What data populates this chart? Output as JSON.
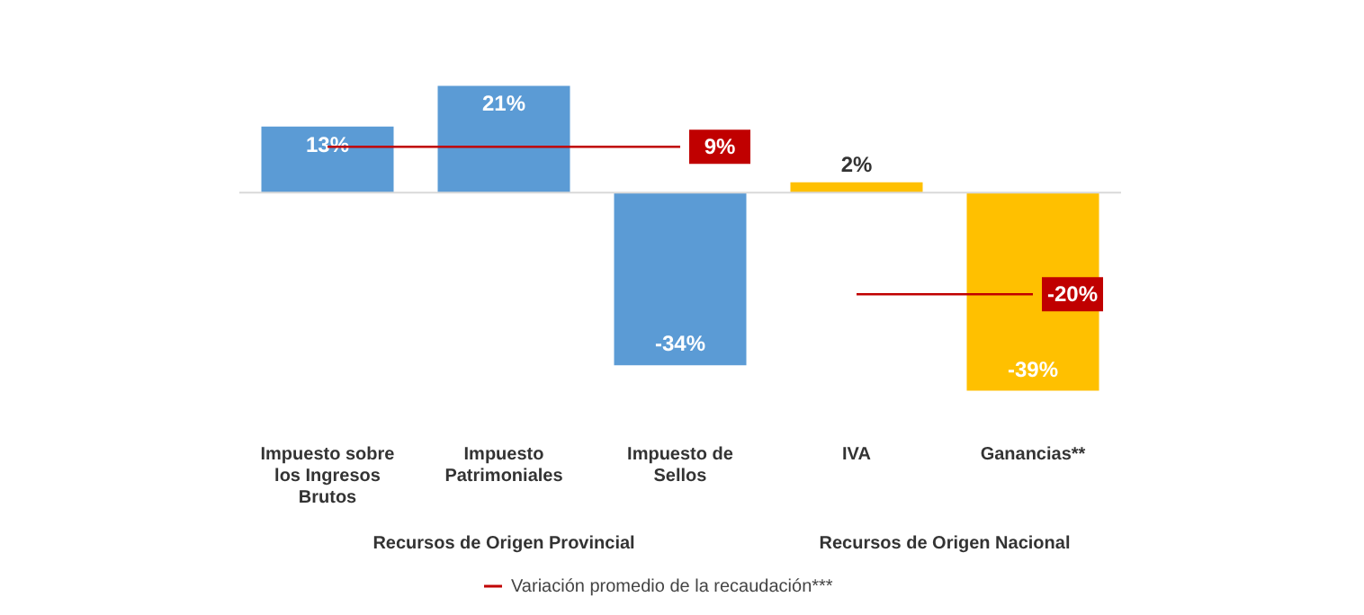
{
  "chart_data": {
    "type": "bar",
    "categories": [
      "Impuesto sobre los Ingresos Brutos",
      "Impuesto Patrimoniales",
      "Impuesto de Sellos",
      "IVA",
      "Ganancias**"
    ],
    "values": [
      13,
      21,
      -34,
      2,
      -39
    ],
    "colors": [
      "#5b9bd5",
      "#5b9bd5",
      "#5b9bd5",
      "#ffc000",
      "#ffc000"
    ],
    "value_labels": [
      "13%",
      "21%",
      "-34%",
      "2%",
      "-39%"
    ],
    "series": [
      {
        "name": "Variación promedio de la recaudación***",
        "type": "line",
        "color": "#c00000",
        "values": [
          9,
          9,
          9,
          null,
          null
        ],
        "value_labels": [
          null,
          null,
          "9%",
          null,
          null
        ]
      },
      {
        "type": "line",
        "color": "#c00000",
        "values": [
          null,
          null,
          null,
          -20,
          -20
        ],
        "value_labels": [
          null,
          null,
          null,
          null,
          "-20%"
        ]
      }
    ],
    "annotations": [
      "Recursos de Origen Provincial",
      "Recursos de Origen Nacional"
    ],
    "legend": "bottom",
    "grid": false
  }
}
